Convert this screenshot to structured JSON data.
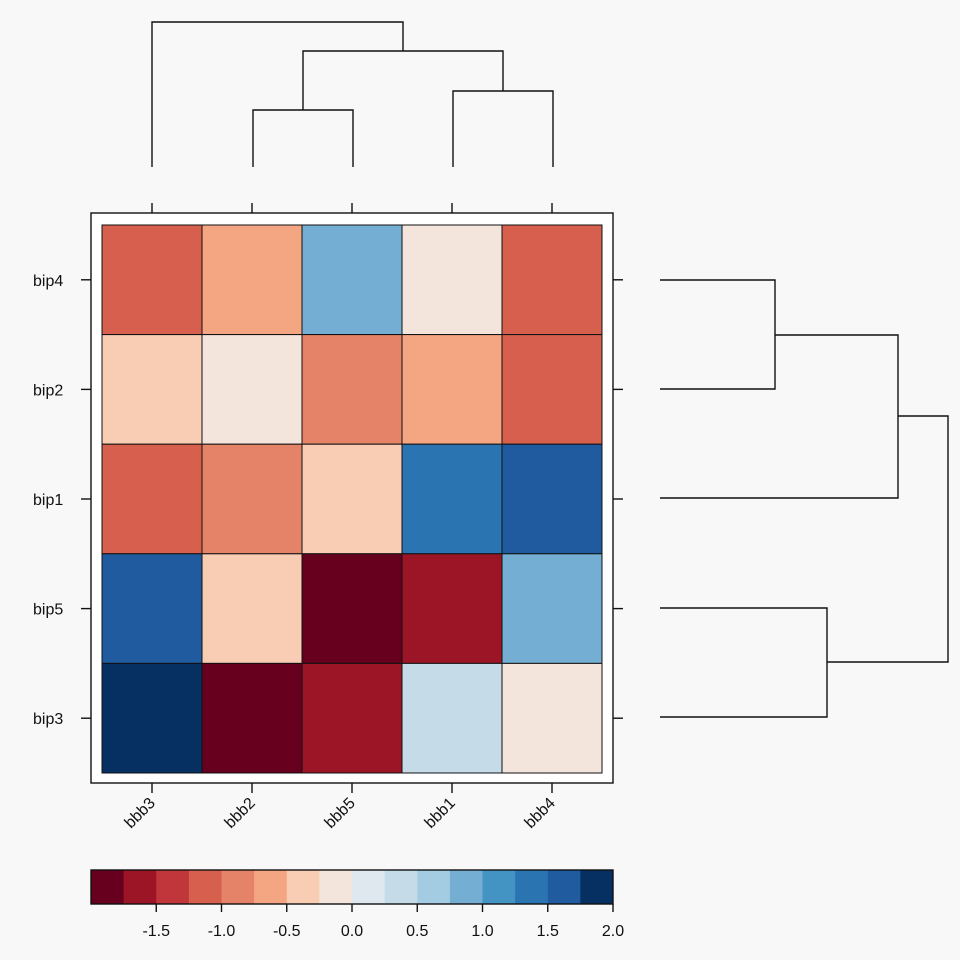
{
  "chart_data": {
    "type": "heatmap",
    "title": "",
    "xlabel": "",
    "ylabel": "",
    "columns": [
      "bbb3",
      "bbb2",
      "bbb5",
      "bbb1",
      "bbb4"
    ],
    "rows": [
      "bip4",
      "bip2",
      "bip1",
      "bip5",
      "bip3"
    ],
    "values": [
      [
        -1.2,
        -0.55,
        0.8,
        -0.05,
        -1.15
      ],
      [
        -0.5,
        -0.1,
        -0.85,
        -0.65,
        -1.15
      ],
      [
        -1.2,
        -0.9,
        -0.5,
        1.4,
        1.7
      ],
      [
        1.6,
        -0.35,
        -1.8,
        -1.6,
        0.8
      ],
      [
        2.0,
        -2.0,
        -1.6,
        0.35,
        -0.1
      ]
    ],
    "colorbar": {
      "min": -2.0,
      "max": 2.0,
      "ticks": [
        "-1.5",
        "-1.0",
        "-0.5",
        "0.0",
        "0.5",
        "1.0",
        "1.5",
        "2.0"
      ],
      "tick_values": [
        -1.5,
        -1.0,
        -0.5,
        0.0,
        0.5,
        1.0,
        1.5,
        2.0
      ],
      "colors": [
        "#67001f",
        "#9b1526",
        "#c0363a",
        "#d6604d",
        "#e58368",
        "#f4a582",
        "#f8cdb4",
        "#f3e5dc",
        "#dfe8ee",
        "#c5dbe8",
        "#a3cce2",
        "#74aed3",
        "#4393c3",
        "#2b74b2",
        "#1f5b9e",
        "#053061"
      ]
    },
    "column_dendrogram": "((bbb3,((bbb2,bbb5),(bbb1,bbb4))))",
    "row_dendrogram": "((((bip4,bip2),bip1),(bip5,bip3)))"
  }
}
